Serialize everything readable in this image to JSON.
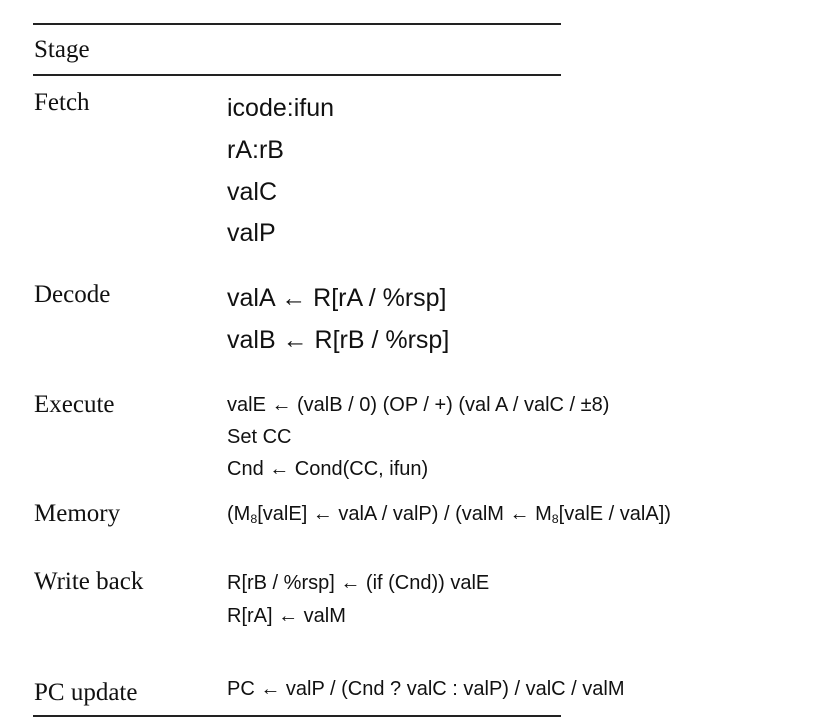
{
  "table": {
    "header": {
      "stage_label": "Stage"
    },
    "rows": [
      {
        "stage": "Fetch",
        "lines": [
          "icode:ifun",
          "rA:rB",
          "valC",
          "valP"
        ]
      },
      {
        "stage": "Decode",
        "lines": [
          "valA ← R[rA / %rsp]",
          "valB ← R[rB / %rsp]"
        ]
      },
      {
        "stage": "Execute",
        "lines": [
          "valE ← (valB / 0) (OP / +) (val A / valC / ±8)",
          "Set CC",
          "Cnd ← Cond(CC, ifun)"
        ]
      },
      {
        "stage": "Memory",
        "lines": [
          {
            "segments": [
              "(M",
              "8",
              "[valE] ← valA / valP) / (valM ← M",
              "8",
              "[valE / valA])"
            ]
          }
        ]
      },
      {
        "stage": "Write back",
        "lines": [
          "R[rB / %rsp] ← (if (Cnd)) valE",
          "R[rA] ← valM"
        ]
      },
      {
        "stage": "PC update",
        "lines": [
          "PC ← valP / (Cnd ? valC : valP) / valC / valM"
        ]
      }
    ]
  }
}
